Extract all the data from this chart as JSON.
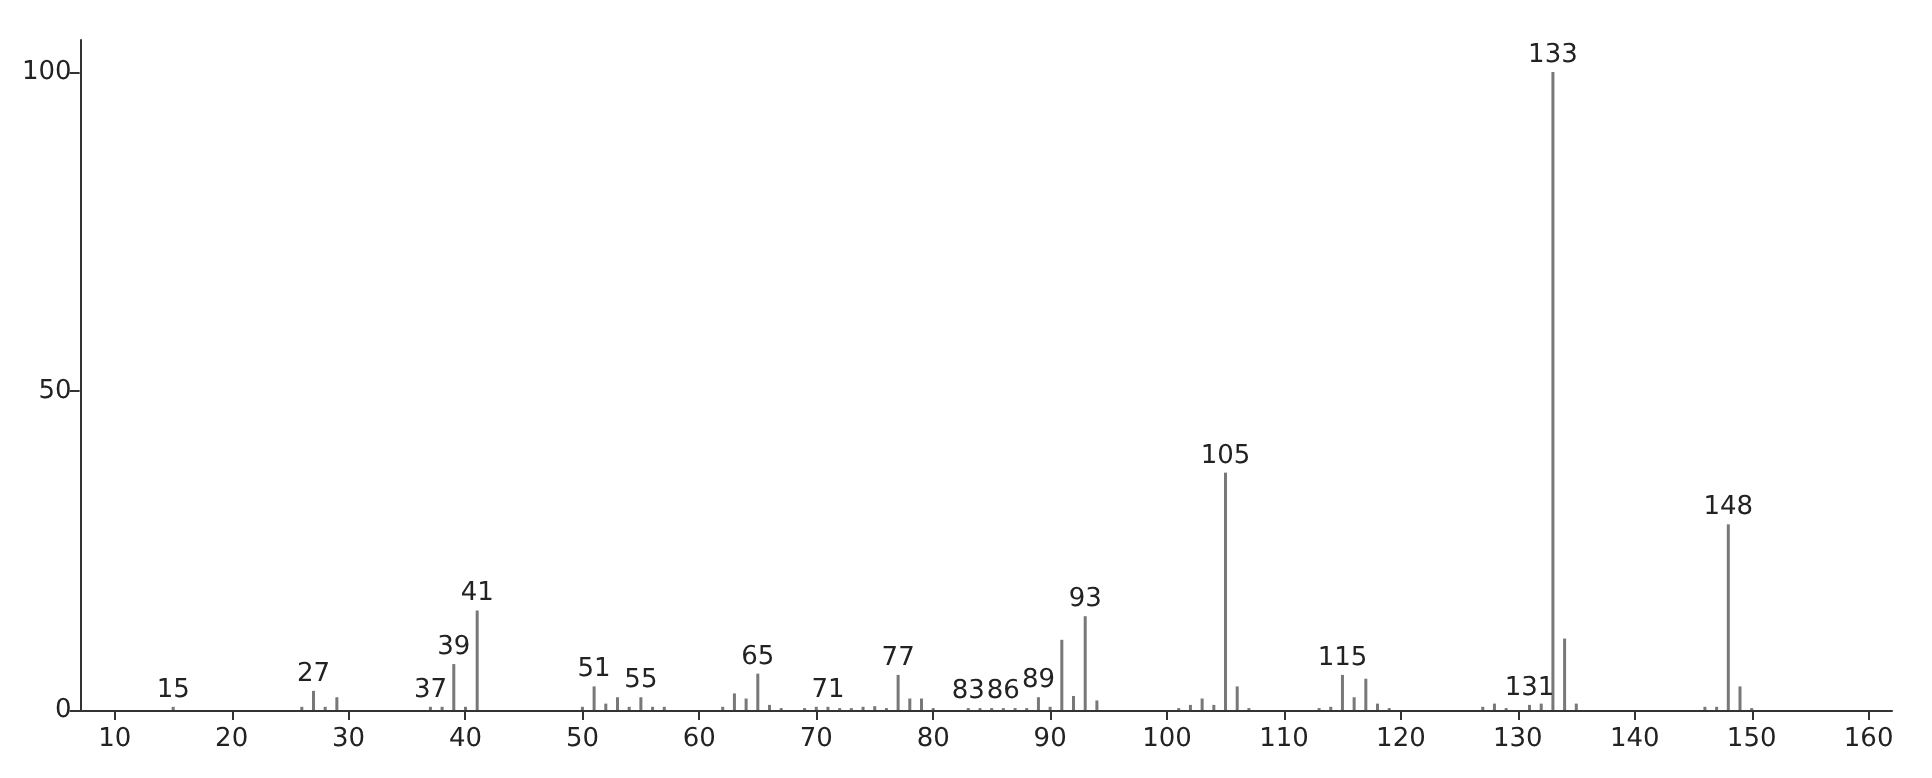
{
  "chart_data": {
    "type": "bar",
    "x": [
      15,
      26,
      27,
      28,
      29,
      37,
      38,
      39,
      40,
      41,
      50,
      51,
      52,
      53,
      54,
      55,
      56,
      57,
      62,
      63,
      64,
      65,
      66,
      67,
      69,
      70,
      71,
      72,
      73,
      74,
      75,
      76,
      77,
      78,
      79,
      80,
      83,
      84,
      85,
      86,
      87,
      88,
      89,
      90,
      91,
      92,
      93,
      94,
      101,
      102,
      103,
      104,
      105,
      106,
      107,
      113,
      114,
      115,
      116,
      117,
      118,
      119,
      127,
      128,
      129,
      131,
      132,
      133,
      134,
      135,
      146,
      147,
      148,
      149,
      150
    ],
    "values": [
      0.5,
      0.5,
      3,
      0.5,
      2,
      0.5,
      0.5,
      7.2,
      0.5,
      15.6,
      0.5,
      3.7,
      1,
      2,
      0.5,
      2,
      0.5,
      0.5,
      0.5,
      2.6,
      1.8,
      5.7,
      0.8,
      0.3,
      0.3,
      0.5,
      0.5,
      0.3,
      0.3,
      0.5,
      0.6,
      0.3,
      5.5,
      1.8,
      1.8,
      0.3,
      0.3,
      0.3,
      0.3,
      0.3,
      0.3,
      0.3,
      2,
      0.5,
      11,
      2.2,
      14.7,
      1.5,
      0.3,
      0.8,
      1.8,
      0.8,
      37.2,
      3.7,
      0.3,
      0.3,
      0.5,
      5.5,
      2,
      4.9,
      1,
      0.3,
      0.5,
      1,
      0.3,
      0.8,
      1,
      100,
      11.2,
      1,
      0.5,
      0.5,
      29.1,
      3.7,
      0.3
    ],
    "color": "#787878",
    "xlim": [
      7,
      162
    ],
    "xticks": [
      10,
      20,
      30,
      40,
      50,
      60,
      70,
      80,
      90,
      100,
      110,
      120,
      130,
      140,
      150,
      160
    ],
    "ylim": [
      0,
      105
    ],
    "yticks": [
      0,
      50,
      100
    ],
    "grid": false,
    "annotations": [
      {
        "text": "15",
        "x": 15,
        "y": 0.5
      },
      {
        "text": "27",
        "x": 27,
        "y": 3
      },
      {
        "text": "37",
        "x": 37,
        "y": 0.5
      },
      {
        "text": "39",
        "x": 39,
        "y": 7.2
      },
      {
        "text": "41",
        "x": 41,
        "y": 15.6
      },
      {
        "text": "51",
        "x": 51,
        "y": 3.7
      },
      {
        "text": "55",
        "x": 55,
        "y": 2
      },
      {
        "text": "65",
        "x": 65,
        "y": 5.7
      },
      {
        "text": "71",
        "x": 71,
        "y": 0.5
      },
      {
        "text": "77",
        "x": 77,
        "y": 5.5
      },
      {
        "text": "83",
        "x": 83,
        "y": 0.3
      },
      {
        "text": "86",
        "x": 86,
        "y": 0.3
      },
      {
        "text": "89",
        "x": 89,
        "y": 2
      },
      {
        "text": "93",
        "x": 93,
        "y": 14.7
      },
      {
        "text": "105",
        "x": 105,
        "y": 37.2
      },
      {
        "text": "115",
        "x": 115,
        "y": 5.5
      },
      {
        "text": "131",
        "x": 131,
        "y": 0.8
      },
      {
        "text": "133",
        "x": 133,
        "y": 100
      },
      {
        "text": "148",
        "x": 148,
        "y": 29.1
      }
    ]
  }
}
